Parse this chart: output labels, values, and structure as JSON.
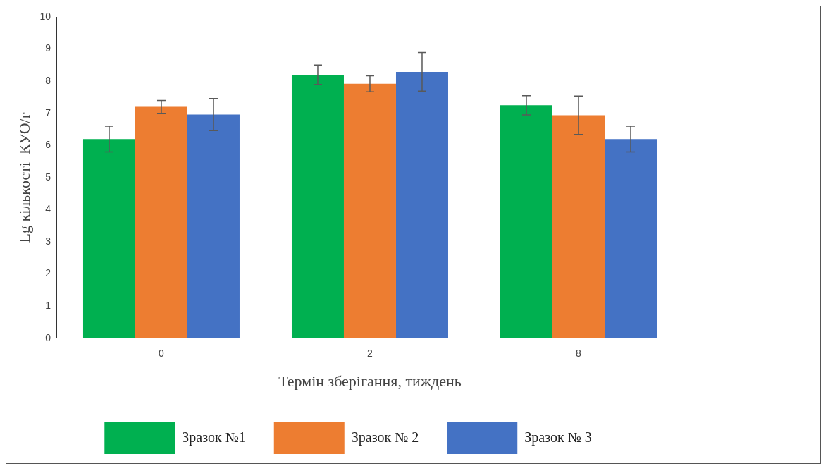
{
  "chart_data": {
    "type": "bar",
    "xlabel": "Термін зберігання, тиждень",
    "ylabel": "Lg кількості  КУО/г",
    "categories": [
      "0",
      "2",
      "8"
    ],
    "series": [
      {
        "name": "Зразок №1",
        "color": "#00b050",
        "values": [
          6.2,
          8.2,
          7.25
        ],
        "errors": [
          0.4,
          0.3,
          0.3
        ]
      },
      {
        "name": "Зразок № 2",
        "color": "#ed7d31",
        "values": [
          7.2,
          7.92,
          6.94
        ],
        "errors": [
          0.2,
          0.25,
          0.6
        ]
      },
      {
        "name": "Зразок № 3",
        "color": "#4472c4",
        "values": [
          6.96,
          8.29,
          6.2
        ],
        "errors": [
          0.5,
          0.6,
          0.4
        ]
      }
    ],
    "ylim": [
      0,
      10
    ],
    "yticks": [
      0,
      1,
      2,
      3,
      4,
      5,
      6,
      7,
      8,
      9,
      10
    ],
    "grid": false,
    "legend": "bottom"
  }
}
